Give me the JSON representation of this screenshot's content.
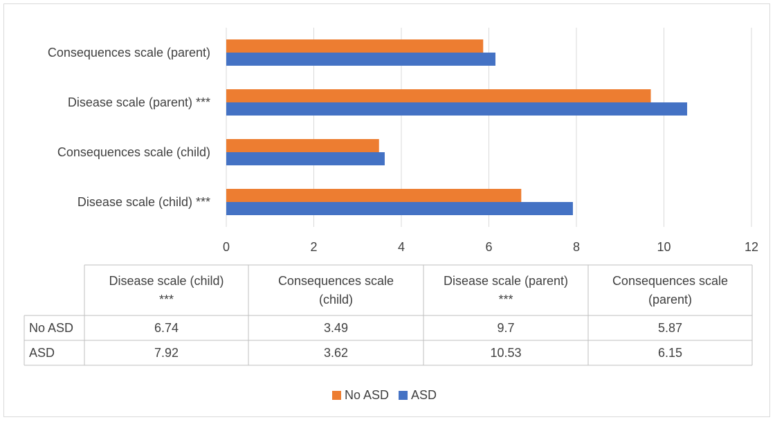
{
  "chart_data": {
    "type": "bar",
    "orientation": "horizontal",
    "categories": [
      "Disease scale (child) ***",
      "Consequences scale (child)",
      "Disease scale (parent) ***",
      "Consequences scale (parent)"
    ],
    "table_headers": [
      [
        "Disease scale (child)",
        "***"
      ],
      [
        "Consequences scale",
        "(child)"
      ],
      [
        "Disease scale (parent)",
        "***"
      ],
      [
        "Consequences scale",
        "(parent)"
      ]
    ],
    "series": [
      {
        "name": "No ASD",
        "color": "#ed7d31",
        "values": [
          6.74,
          3.49,
          9.7,
          5.87
        ]
      },
      {
        "name": "ASD",
        "color": "#4472c4",
        "values": [
          7.92,
          3.62,
          10.53,
          6.15
        ]
      }
    ],
    "value_labels": [
      [
        "6.74",
        "3.49",
        "9.7",
        "5.87"
      ],
      [
        "7.92",
        "3.62",
        "10.53",
        "6.15"
      ]
    ],
    "xlim": [
      0,
      12
    ],
    "xticks": [
      0,
      2,
      4,
      6,
      8,
      10,
      12
    ],
    "grid": true,
    "legend": "bottom",
    "data_table": true
  }
}
